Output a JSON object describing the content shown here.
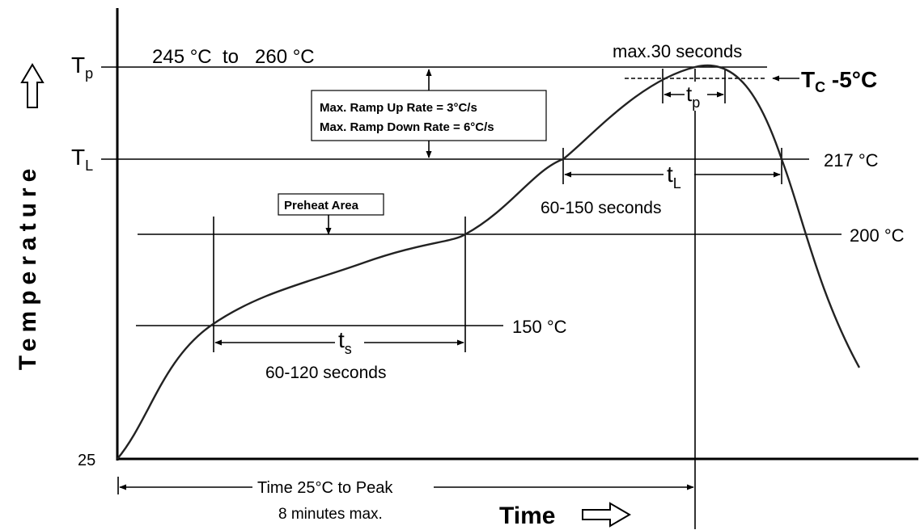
{
  "y_axis": {
    "label": "Temperature",
    "arrow_icon": "up-outline-arrow-icon",
    "origin_label": "25",
    "tp": {
      "main": "T",
      "sub": "p"
    },
    "tl": {
      "main": "T",
      "sub": "L"
    }
  },
  "x_axis": {
    "label": "Time",
    "arrow_icon": "right-outline-arrow-icon"
  },
  "labels": {
    "peak_range": "245 °C  to   260 °C",
    "max_30": "max.30 seconds",
    "tc": {
      "main": "T",
      "sub": "C",
      "suffix": " -5°C"
    },
    "tp_interval": {
      "main": "t",
      "sub": "p"
    },
    "tl_interval": {
      "main": "t",
      "sub": "L"
    },
    "tl_duration": "60-150 seconds",
    "ts_interval": {
      "main": "t",
      "sub": "s"
    },
    "ts_duration": "60-120 seconds",
    "temp_217": "217 °C",
    "temp_200": "200 °C",
    "temp_150": "150 °C",
    "ramp_up": "Max. Ramp Up Rate = 3°C/s",
    "ramp_down": "Max. Ramp Down Rate = 6°C/s",
    "preheat": "Preheat Area",
    "time_to_peak": "Time 25°C to Peak",
    "time_to_peak_max": "8 minutes max."
  }
}
